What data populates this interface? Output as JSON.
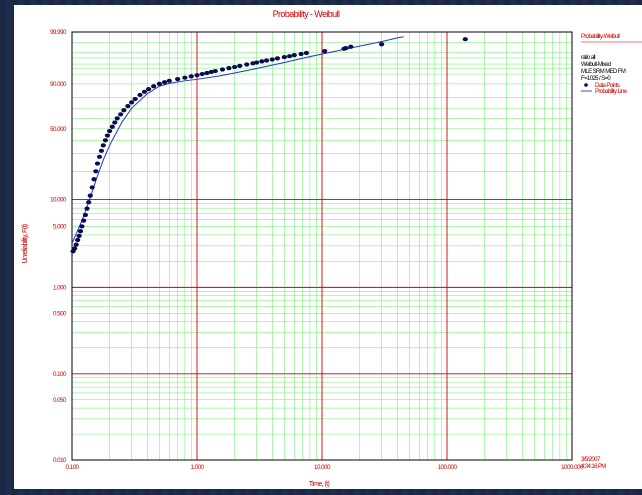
{
  "chart_data": {
    "type": "scatter",
    "title": "Probability - Weibull",
    "xlabel": "Time, (t)",
    "ylabel": "Unreliability, F(t)",
    "xscale": "log",
    "yscale": "weibull",
    "xlim": [
      0.1,
      1000
    ],
    "ylim": [
      0.01,
      99.99
    ],
    "x_tick_labels": [
      "0.100",
      "1.000",
      "10.000",
      "100.000",
      "1000.000"
    ],
    "y_tick_labels": [
      "0.010",
      "0.050",
      "0.100",
      "0.500",
      "1.000",
      "5.000",
      "10.000",
      "50.000",
      "90.000",
      "99.990"
    ],
    "grid": true,
    "colors": {
      "major_grid": "#cc0000",
      "minor_grid": "#66ee66",
      "points": "#0a0a50",
      "line": "#2233cc",
      "text": "#cc0000"
    },
    "series": [
      {
        "name": "Data Points",
        "style": "points",
        "x": [
          0.102,
          0.105,
          0.108,
          0.111,
          0.114,
          0.117,
          0.12,
          0.124,
          0.128,
          0.132,
          0.136,
          0.14,
          0.145,
          0.15,
          0.155,
          0.16,
          0.166,
          0.172,
          0.178,
          0.185,
          0.192,
          0.2,
          0.21,
          0.22,
          0.23,
          0.245,
          0.26,
          0.28,
          0.3,
          0.32,
          0.35,
          0.38,
          0.41,
          0.45,
          0.5,
          0.55,
          0.6,
          0.7,
          0.8,
          0.9,
          1.0,
          1.1,
          1.2,
          1.3,
          1.4,
          1.6,
          1.8,
          2.0,
          2.2,
          2.5,
          2.8,
          3.0,
          3.3,
          3.6,
          4.0,
          4.4,
          5.0,
          5.5,
          6.0,
          6.8,
          7.5,
          10.5,
          15.0,
          15.5,
          17.0,
          30.0,
          140.0
        ],
        "y": [
          2.6,
          2.8,
          3.1,
          3.5,
          3.9,
          4.4,
          5.0,
          5.8,
          6.7,
          7.9,
          9.3,
          11.0,
          13.5,
          16.5,
          20.0,
          24.0,
          28.0,
          32.0,
          36.0,
          40.0,
          44.0,
          48.0,
          52.0,
          56.0,
          60.0,
          64.0,
          68.0,
          72.0,
          75.5,
          78.5,
          82.0,
          84.5,
          86.5,
          88.5,
          90.0,
          91.0,
          91.8,
          92.7,
          93.4,
          94.0,
          94.5,
          95.0,
          95.4,
          95.8,
          96.1,
          96.6,
          97.0,
          97.3,
          97.6,
          97.9,
          98.15,
          98.3,
          98.5,
          98.65,
          98.8,
          98.95,
          99.1,
          99.2,
          99.3,
          99.4,
          99.48,
          99.6,
          99.72,
          99.75,
          99.8,
          99.87,
          99.95
        ]
      },
      {
        "name": "Probability Line",
        "style": "line",
        "x": [
          0.1,
          0.12,
          0.14,
          0.16,
          0.18,
          0.2,
          0.25,
          0.3,
          0.4,
          0.5,
          0.6,
          0.8,
          1.0,
          1.5,
          2.0,
          3.0,
          5.0,
          8.0,
          12.0,
          20.0,
          30.0,
          40.0,
          45.0
        ],
        "y": [
          3.2,
          5.8,
          10.5,
          18.0,
          27.0,
          36.0,
          56.0,
          70.0,
          83.0,
          88.5,
          90.3,
          91.8,
          92.6,
          94.2,
          95.4,
          96.9,
          98.3,
          99.15,
          99.55,
          99.82,
          99.92,
          99.962,
          99.97
        ]
      }
    ],
    "legend": {
      "placement": "right",
      "title": "Probability-Weibull",
      "lines": [
        "ratio all",
        "Weibull-Mixed",
        "MLE SRM MED FM",
        "F=1025 / S=0"
      ],
      "entries": [
        "Data Points",
        "Probability Line"
      ]
    },
    "footer": {
      "date": "3/5/2007",
      "time": "4:34:16 PM"
    }
  }
}
